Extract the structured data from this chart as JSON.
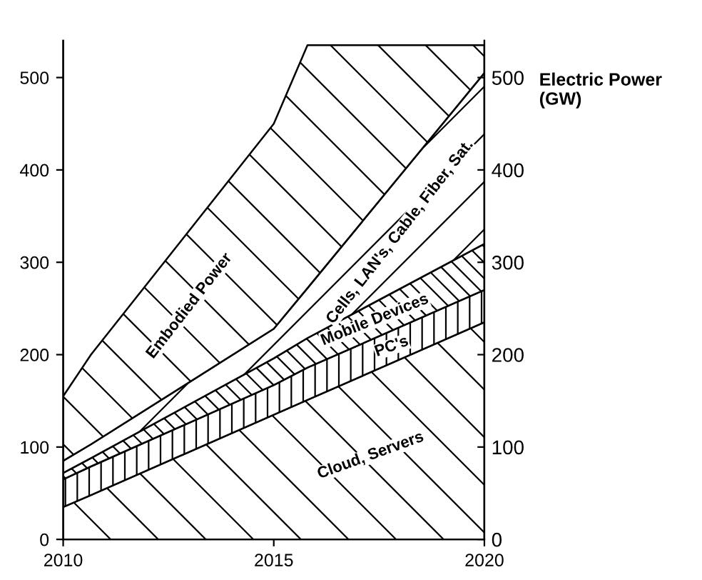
{
  "chart_data": {
    "type": "area",
    "stacked": true,
    "x": [
      2010,
      2010.66,
      2015,
      2015.8,
      2020
    ],
    "series": [
      {
        "name": "Cloud, Servers",
        "color": "#000000",
        "values": [
          35,
          48,
          135,
          151,
          235
        ]
      },
      {
        "name": "PC's",
        "color": "#000000",
        "values": [
          30,
          31,
          32,
          35,
          35
        ]
      },
      {
        "name": "Mobile Devices",
        "color": "#000000",
        "values": [
          7,
          9,
          29,
          32,
          50
        ]
      },
      {
        "name": "Cells, LAN's, Cable, Fiber, Sat.",
        "color": "#000000",
        "values": [
          13,
          15,
          32,
          54,
          185
        ]
      },
      {
        "name": "Embodied Power",
        "color": "#000000",
        "values": [
          70,
          97,
          222,
          263,
          30
        ]
      }
    ],
    "xlim": [
      2010,
      2020
    ],
    "xticks": [
      2010,
      2015,
      2020
    ],
    "ylim": [
      0,
      540
    ],
    "yticks": [
      0,
      100,
      200,
      300,
      400,
      500
    ],
    "y2lim": [
      0,
      540
    ],
    "y2ticks": [
      0,
      100,
      200,
      300,
      400,
      500
    ],
    "y2label": "Electric Power (GW)",
    "grid": false,
    "legend": false
  }
}
